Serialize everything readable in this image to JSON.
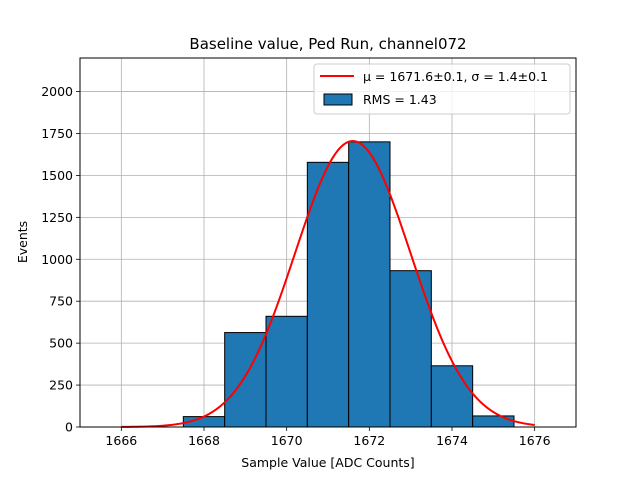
{
  "chart_data": {
    "type": "bar",
    "title": "Baseline value, Ped Run, channel072",
    "xlabel": "Sample Value [ADC Counts]",
    "ylabel": "Events",
    "xlim": [
      1665,
      1677
    ],
    "ylim": [
      0,
      2200
    ],
    "xticks": [
      1666,
      1668,
      1670,
      1672,
      1674,
      1676
    ],
    "yticks": [
      0,
      250,
      500,
      750,
      1000,
      1250,
      1500,
      1750,
      2000
    ],
    "grid": true,
    "legend_position": "top-right",
    "bar_color": "#1f77b4",
    "fit_color": "#ff0000",
    "bins": [
      {
        "x0": 1665.5,
        "x1": 1666.5,
        "count": 0
      },
      {
        "x0": 1666.5,
        "x1": 1667.5,
        "count": 0
      },
      {
        "x0": 1667.5,
        "x1": 1668.5,
        "count": 62
      },
      {
        "x0": 1668.5,
        "x1": 1669.5,
        "count": 563
      },
      {
        "x0": 1669.5,
        "x1": 1670.5,
        "count": 660
      },
      {
        "x0": 1670.5,
        "x1": 1671.5,
        "count": 1578
      },
      {
        "x0": 1671.5,
        "x1": 1672.5,
        "count": 1700
      },
      {
        "x0": 1672.5,
        "x1": 1673.5,
        "count": 932
      },
      {
        "x0": 1673.5,
        "x1": 1674.5,
        "count": 365
      },
      {
        "x0": 1674.5,
        "x1": 1675.5,
        "count": 66
      }
    ],
    "fit": {
      "name": "μ = 1671.6±0.1, σ = 1.4±0.1",
      "mu": 1671.6,
      "sigma": 1.4,
      "amplitude": 1705,
      "x_start": 1666,
      "x_end": 1676
    },
    "histogram_name": "RMS = 1.43"
  }
}
